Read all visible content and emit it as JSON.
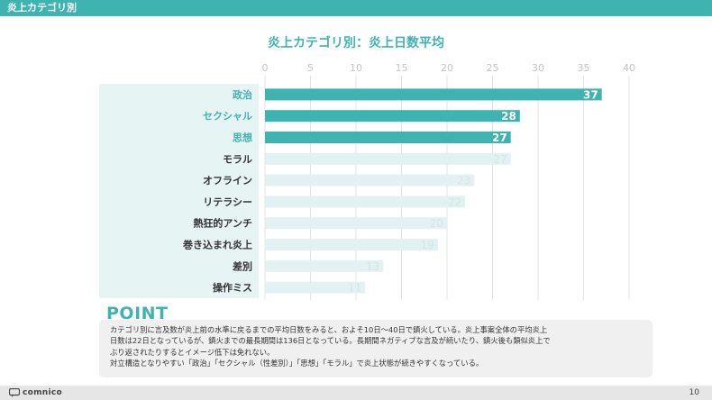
{
  "header": {
    "title": "炎上カテゴリ別"
  },
  "colors": {
    "accent": "#3fb3b0",
    "bar_highlight": "#3fb3b0",
    "bar_muted": "#e2f2f2",
    "muted_value_text": "#d2e6e6",
    "label_panel": "#e6f4f4"
  },
  "chart_data": {
    "type": "bar",
    "orientation": "horizontal",
    "title": "炎上カテゴリ別：炎上日数平均",
    "xlabel": "",
    "ylabel": "",
    "xlim": [
      0,
      40
    ],
    "xticks": [
      0,
      5,
      10,
      15,
      20,
      25,
      30,
      35,
      40
    ],
    "grid": true,
    "categories": [
      "政治",
      "セクシャル",
      "思想",
      "モラル",
      "オフライン",
      "リテラシー",
      "熱狂的アンチ",
      "巻き込まれ炎上",
      "差別",
      "操作ミス"
    ],
    "values": [
      37,
      28,
      27,
      27,
      23,
      22,
      20,
      19,
      13,
      11
    ],
    "highlighted": [
      true,
      true,
      true,
      false,
      false,
      false,
      false,
      false,
      false,
      false
    ]
  },
  "point": {
    "title": "POINT",
    "lines": [
      "カテゴリ別に言及数が炎上前の水準に戻るまでの平均日数をみると、およそ10日〜40日で鎮火している。炎上事案全体の平均炎上",
      "日数は22日となっているが、鎮火までの最長期間は136日となっている。長期間ネガティブな言及が続いたり、鎮火後も類似炎上で",
      "ぶり返されたりするとイメージ低下は免れない。",
      "対立構造となりやすい「政治」「セクシャル（性差別）」「思想」「モラル」で炎上状態が続きやすくなっている。"
    ]
  },
  "footer": {
    "logo_text": "comnico",
    "page_number": "10"
  }
}
